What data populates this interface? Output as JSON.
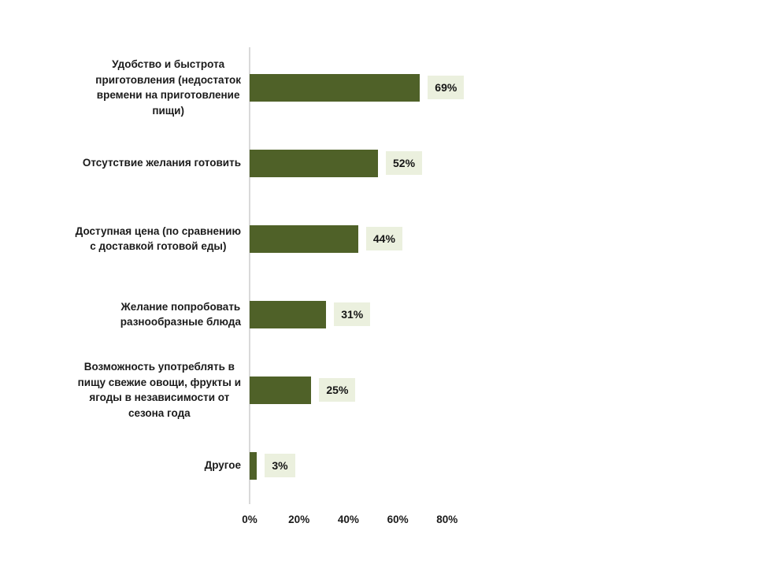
{
  "colors": {
    "bar": "#4f6128",
    "value_label_bg": "#ebf0de",
    "axis_line": "#d9d9d9",
    "text": "#1b1b1b",
    "background": "#ffffff"
  },
  "chart_data": {
    "type": "bar",
    "orientation": "horizontal",
    "categories": [
      "Удобство и быстрота приготовления (недостаток времени на приготовление пищи)",
      "Отсутствие желания готовить",
      "Доступная цена (по сравнению с доставкой готовой еды)",
      "Желание попробовать разнообразные блюда",
      "Возможность употреблять в пищу свежие овощи, фрукты и ягоды в независимости от сезона года",
      "Другое"
    ],
    "category_display": [
      "Удобство и быстрота\nприготовления (недостаток\nвремени на приготовление\nпищи)",
      "Отсутствие желания готовить",
      "Доступная цена (по сравнению\nс доставкой готовой еды)",
      "Желание попробовать\nразнообразные блюда",
      "Возможность употреблять в\nпищу свежие овощи, фрукты и\nягоды в независимости от\nсезона года",
      "Другое"
    ],
    "values": [
      69,
      52,
      44,
      31,
      25,
      3
    ],
    "value_labels": [
      "69%",
      "52%",
      "44%",
      "31%",
      "25%",
      "3%"
    ],
    "xlim": [
      0,
      80
    ],
    "x_ticks": [
      0,
      20,
      40,
      60,
      80
    ],
    "x_tick_labels": [
      "0%",
      "20%",
      "40%",
      "60%",
      "80%"
    ],
    "grid": false,
    "legend": false
  }
}
